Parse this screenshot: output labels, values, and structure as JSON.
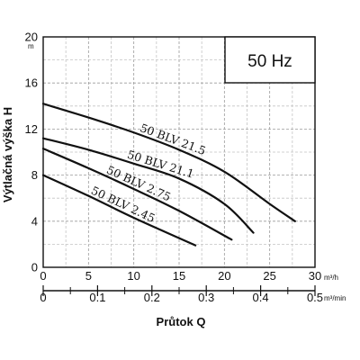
{
  "chart_data": {
    "type": "line",
    "frequency_label": "50 Hz",
    "ylabel": "Výtlačná výška H",
    "yunit": "m",
    "xlabel": "Průtok Q",
    "x_unit_primary": "m³/h",
    "x_unit_secondary": "m³/min",
    "x_primary_ticks": [
      "0",
      "5",
      "10",
      "15",
      "20",
      "25",
      "30"
    ],
    "x_secondary_ticks": [
      "0",
      "0.1",
      "0.2",
      "0.3",
      "0.4",
      "0.5"
    ],
    "y_ticks": [
      "0",
      "4",
      "8",
      "12",
      "16",
      "20"
    ],
    "xlim": [
      0,
      30
    ],
    "ylim": [
      0,
      20
    ],
    "grid": true,
    "series": [
      {
        "name": "50 BLV 21.5",
        "x": [
          0,
          5,
          10,
          15,
          20,
          25,
          27.8
        ],
        "y": [
          14.2,
          13.0,
          11.7,
          10.2,
          8.3,
          5.5,
          4.0
        ]
      },
      {
        "name": "50 BLV 21.1",
        "x": [
          0,
          5,
          10,
          15,
          20,
          23.2
        ],
        "y": [
          11.2,
          10.2,
          9.0,
          7.7,
          5.5,
          3.0
        ]
      },
      {
        "name": "50 BLV 2.75",
        "x": [
          0,
          5,
          10,
          15,
          20.8
        ],
        "y": [
          10.3,
          8.6,
          6.8,
          4.9,
          2.4
        ]
      },
      {
        "name": "50 BLV 2.45",
        "x": [
          0,
          5,
          10,
          16.8
        ],
        "y": [
          8.0,
          6.2,
          4.3,
          1.9
        ]
      }
    ]
  }
}
